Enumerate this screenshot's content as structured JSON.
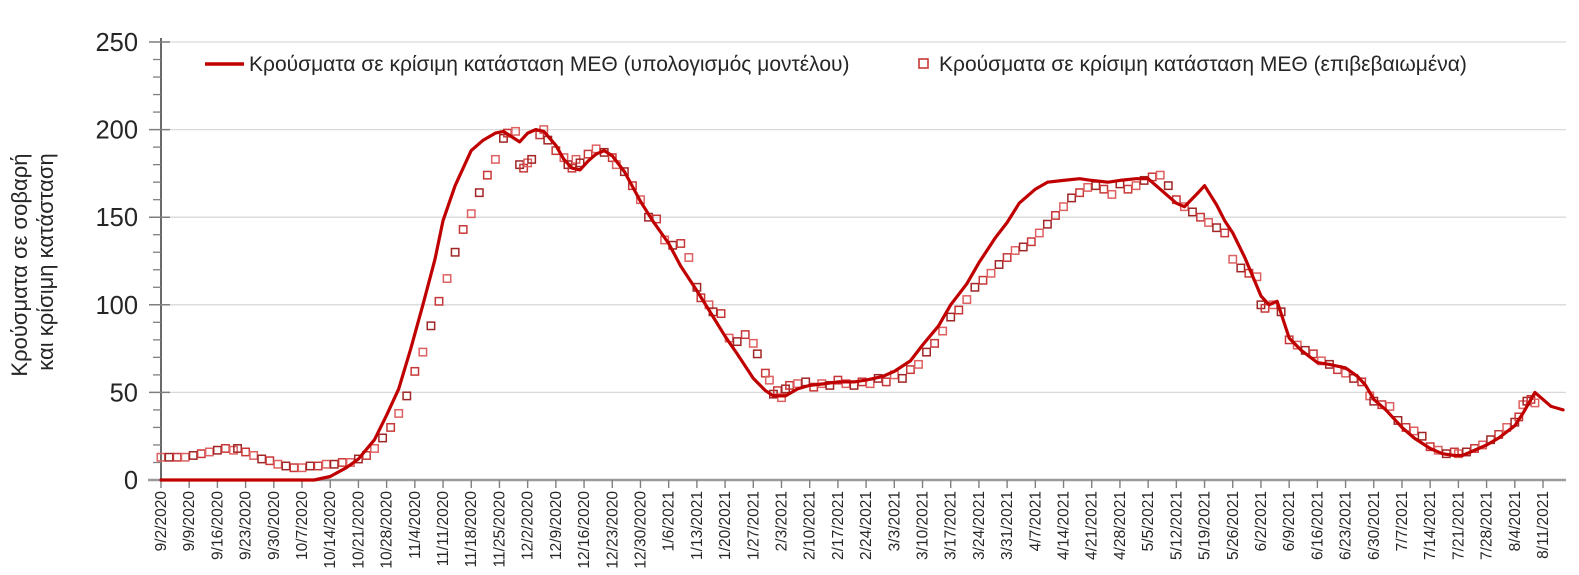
{
  "chart_data": {
    "type": "line",
    "title": "",
    "ylabel_line1": "Κρούσματα σε σοβαρή",
    "ylabel_line2": "και κρίσιμη κατάσταση",
    "ylim": [
      0,
      250
    ],
    "y_ticks": [
      0,
      50,
      100,
      150,
      200,
      250
    ],
    "y_minor_tick_step": 10,
    "grid": "horizontal-major",
    "legend_position": "top",
    "x_tick_interval_days": 7,
    "x_tick_labels": [
      "9/2/2020",
      "9/9/2020",
      "9/16/2020",
      "9/23/2020",
      "9/30/2020",
      "10/7/2020",
      "10/14/2020",
      "10/21/2020",
      "10/28/2020",
      "11/4/2020",
      "11/11/2020",
      "11/18/2020",
      "11/25/2020",
      "12/2/2020",
      "12/9/2020",
      "12/16/2020",
      "12/23/2020",
      "12/30/2020",
      "1/6/2021",
      "1/13/2021",
      "1/20/2021",
      "1/27/2021",
      "2/3/2021",
      "2/10/2021",
      "2/17/2021",
      "2/24/2021",
      "3/3/2021",
      "3/10/2021",
      "3/17/2021",
      "3/24/2021",
      "3/31/2021",
      "4/7/2021",
      "4/14/2021",
      "4/21/2021",
      "4/28/2021",
      "5/5/2021",
      "5/12/2021",
      "5/19/2021",
      "5/26/2021",
      "6/2/2021",
      "6/9/2021",
      "6/16/2021",
      "6/23/2021",
      "6/30/2021",
      "7/7/2021",
      "7/14/2021",
      "7/21/2021",
      "7/28/2021",
      "8/4/2021",
      "8/11/2021"
    ],
    "colors": {
      "model_line": "#c00000",
      "grid": "#d9d9d9",
      "axis_x": "#9b9b9b",
      "axis_y": "#595959",
      "tick": "#7f7f7f",
      "text": "#262626",
      "marker_colors": [
        "#df6060",
        "#a02525",
        "#c83737"
      ]
    },
    "series": [
      {
        "name": "Κρούσματα σε κρίσιμη κατάσταση ΜΕΘ (υπολογισμός μοντέλου)",
        "type": "line",
        "color": "#c00000",
        "points_day_value": [
          [
            0,
            0
          ],
          [
            20,
            0
          ],
          [
            38,
            0
          ],
          [
            42,
            2
          ],
          [
            46,
            7
          ],
          [
            49,
            12
          ],
          [
            53,
            23
          ],
          [
            56,
            37
          ],
          [
            59,
            52
          ],
          [
            62,
            75
          ],
          [
            65,
            100
          ],
          [
            68,
            126
          ],
          [
            70,
            148
          ],
          [
            73,
            168
          ],
          [
            77,
            188
          ],
          [
            80,
            194
          ],
          [
            83,
            198
          ],
          [
            85,
            199
          ],
          [
            87,
            196
          ],
          [
            89,
            193
          ],
          [
            91,
            198
          ],
          [
            93,
            200
          ],
          [
            95,
            199
          ],
          [
            98,
            191
          ],
          [
            100,
            183
          ],
          [
            102,
            178
          ],
          [
            104,
            177
          ],
          [
            106,
            182
          ],
          [
            108,
            186
          ],
          [
            110,
            188
          ],
          [
            112,
            185
          ],
          [
            115,
            176
          ],
          [
            119,
            159
          ],
          [
            122,
            148
          ],
          [
            126,
            135
          ],
          [
            129,
            122
          ],
          [
            133,
            108
          ],
          [
            136,
            97
          ],
          [
            140,
            82
          ],
          [
            143,
            72
          ],
          [
            147,
            58
          ],
          [
            150,
            51
          ],
          [
            152,
            48
          ],
          [
            155,
            48
          ],
          [
            158,
            52
          ],
          [
            161,
            54
          ],
          [
            165,
            55
          ],
          [
            168,
            56
          ],
          [
            172,
            56
          ],
          [
            175,
            57
          ],
          [
            179,
            59
          ],
          [
            182,
            62
          ],
          [
            186,
            68
          ],
          [
            189,
            77
          ],
          [
            193,
            88
          ],
          [
            196,
            100
          ],
          [
            200,
            112
          ],
          [
            203,
            124
          ],
          [
            207,
            138
          ],
          [
            210,
            147
          ],
          [
            213,
            158
          ],
          [
            217,
            166
          ],
          [
            220,
            170
          ],
          [
            224,
            171
          ],
          [
            228,
            172
          ],
          [
            231,
            171
          ],
          [
            235,
            170
          ],
          [
            238,
            171
          ],
          [
            242,
            172
          ],
          [
            245,
            172
          ],
          [
            248,
            166
          ],
          [
            252,
            158
          ],
          [
            254,
            156
          ],
          [
            257,
            163
          ],
          [
            259,
            168
          ],
          [
            262,
            157
          ],
          [
            264,
            148
          ],
          [
            266,
            141
          ],
          [
            269,
            127
          ],
          [
            271,
            116
          ],
          [
            273,
            105
          ],
          [
            275,
            100
          ],
          [
            277,
            102
          ],
          [
            280,
            81
          ],
          [
            283,
            74
          ],
          [
            287,
            67
          ],
          [
            290,
            66
          ],
          [
            294,
            64
          ],
          [
            297,
            59
          ],
          [
            299,
            54
          ],
          [
            301,
            46
          ],
          [
            304,
            40
          ],
          [
            308,
            30
          ],
          [
            311,
            24
          ],
          [
            315,
            18
          ],
          [
            318,
            15
          ],
          [
            321,
            14
          ],
          [
            323,
            14
          ],
          [
            325,
            16
          ],
          [
            329,
            20
          ],
          [
            332,
            24
          ],
          [
            336,
            31
          ],
          [
            338,
            38
          ],
          [
            340,
            46
          ],
          [
            341,
            50
          ],
          [
            343,
            46
          ],
          [
            345,
            42
          ],
          [
            348,
            40
          ]
        ]
      },
      {
        "name": "Κρούσματα σε κρίσιμη κατάσταση ΜΕΘ (επιβεβαιωμένα)",
        "type": "scatter-square",
        "color": "#c83737",
        "points_day_value": [
          [
            0,
            13
          ],
          [
            2,
            13
          ],
          [
            4,
            13
          ],
          [
            6,
            13
          ],
          [
            8,
            14
          ],
          [
            10,
            15
          ],
          [
            12,
            16
          ],
          [
            14,
            17
          ],
          [
            16,
            18
          ],
          [
            18,
            17
          ],
          [
            19,
            18
          ],
          [
            21,
            16
          ],
          [
            23,
            14
          ],
          [
            25,
            12
          ],
          [
            27,
            11
          ],
          [
            29,
            9
          ],
          [
            31,
            8
          ],
          [
            33,
            7
          ],
          [
            35,
            7
          ],
          [
            37,
            8
          ],
          [
            39,
            8
          ],
          [
            41,
            9
          ],
          [
            43,
            9
          ],
          [
            45,
            10
          ],
          [
            47,
            10
          ],
          [
            49,
            12
          ],
          [
            51,
            14
          ],
          [
            53,
            18
          ],
          [
            55,
            24
          ],
          [
            57,
            30
          ],
          [
            59,
            38
          ],
          [
            61,
            48
          ],
          [
            63,
            62
          ],
          [
            65,
            73
          ],
          [
            67,
            88
          ],
          [
            69,
            102
          ],
          [
            71,
            115
          ],
          [
            73,
            130
          ],
          [
            75,
            143
          ],
          [
            77,
            152
          ],
          [
            79,
            164
          ],
          [
            81,
            174
          ],
          [
            83,
            183
          ],
          [
            85,
            195
          ],
          [
            86,
            198
          ],
          [
            88,
            199
          ],
          [
            89,
            180
          ],
          [
            90,
            178
          ],
          [
            91,
            181
          ],
          [
            92,
            183
          ],
          [
            94,
            197
          ],
          [
            95,
            200
          ],
          [
            96,
            194
          ],
          [
            98,
            188
          ],
          [
            100,
            184
          ],
          [
            101,
            180
          ],
          [
            102,
            178
          ],
          [
            103,
            183
          ],
          [
            104,
            181
          ],
          [
            106,
            186
          ],
          [
            108,
            189
          ],
          [
            110,
            187
          ],
          [
            112,
            184
          ],
          [
            113,
            180
          ],
          [
            115,
            176
          ],
          [
            117,
            168
          ],
          [
            119,
            160
          ],
          [
            121,
            150
          ],
          [
            123,
            149
          ],
          [
            125,
            137
          ],
          [
            127,
            134
          ],
          [
            129,
            135
          ],
          [
            131,
            127
          ],
          [
            133,
            110
          ],
          [
            134,
            104
          ],
          [
            136,
            100
          ],
          [
            137,
            96
          ],
          [
            139,
            95
          ],
          [
            141,
            81
          ],
          [
            143,
            79
          ],
          [
            145,
            83
          ],
          [
            147,
            78
          ],
          [
            148,
            72
          ],
          [
            150,
            61
          ],
          [
            151,
            57
          ],
          [
            152,
            49
          ],
          [
            153,
            51
          ],
          [
            154,
            47
          ],
          [
            155,
            52
          ],
          [
            156,
            54
          ],
          [
            158,
            55
          ],
          [
            160,
            56
          ],
          [
            162,
            53
          ],
          [
            164,
            55
          ],
          [
            166,
            54
          ],
          [
            168,
            57
          ],
          [
            170,
            55
          ],
          [
            172,
            54
          ],
          [
            174,
            56
          ],
          [
            176,
            55
          ],
          [
            178,
            58
          ],
          [
            180,
            56
          ],
          [
            182,
            60
          ],
          [
            184,
            58
          ],
          [
            186,
            63
          ],
          [
            188,
            66
          ],
          [
            190,
            73
          ],
          [
            192,
            78
          ],
          [
            194,
            85
          ],
          [
            196,
            93
          ],
          [
            198,
            97
          ],
          [
            200,
            103
          ],
          [
            202,
            110
          ],
          [
            204,
            114
          ],
          [
            206,
            118
          ],
          [
            208,
            123
          ],
          [
            210,
            127
          ],
          [
            212,
            131
          ],
          [
            214,
            133
          ],
          [
            216,
            136
          ],
          [
            218,
            141
          ],
          [
            220,
            146
          ],
          [
            222,
            151
          ],
          [
            224,
            156
          ],
          [
            226,
            161
          ],
          [
            228,
            164
          ],
          [
            230,
            167
          ],
          [
            232,
            168
          ],
          [
            234,
            166
          ],
          [
            236,
            163
          ],
          [
            238,
            169
          ],
          [
            240,
            166
          ],
          [
            242,
            168
          ],
          [
            244,
            171
          ],
          [
            246,
            173
          ],
          [
            248,
            174
          ],
          [
            250,
            168
          ],
          [
            252,
            160
          ],
          [
            254,
            156
          ],
          [
            256,
            153
          ],
          [
            258,
            150
          ],
          [
            260,
            147
          ],
          [
            262,
            144
          ],
          [
            264,
            141
          ],
          [
            266,
            126
          ],
          [
            268,
            121
          ],
          [
            270,
            118
          ],
          [
            272,
            116
          ],
          [
            273,
            100
          ],
          [
            274,
            98
          ],
          [
            276,
            100
          ],
          [
            278,
            96
          ],
          [
            280,
            80
          ],
          [
            282,
            77
          ],
          [
            284,
            74
          ],
          [
            286,
            72
          ],
          [
            288,
            68
          ],
          [
            290,
            66
          ],
          [
            292,
            63
          ],
          [
            294,
            61
          ],
          [
            296,
            58
          ],
          [
            298,
            56
          ],
          [
            300,
            48
          ],
          [
            301,
            45
          ],
          [
            303,
            43
          ],
          [
            305,
            42
          ],
          [
            307,
            34
          ],
          [
            309,
            30
          ],
          [
            311,
            28
          ],
          [
            313,
            25
          ],
          [
            315,
            19
          ],
          [
            317,
            17
          ],
          [
            319,
            15
          ],
          [
            321,
            16
          ],
          [
            322,
            15
          ],
          [
            324,
            16
          ],
          [
            326,
            18
          ],
          [
            328,
            20
          ],
          [
            330,
            23
          ],
          [
            332,
            26
          ],
          [
            334,
            30
          ],
          [
            336,
            33
          ],
          [
            337,
            36
          ],
          [
            338,
            43
          ],
          [
            339,
            45
          ],
          [
            340,
            46
          ],
          [
            341,
            44
          ]
        ]
      }
    ],
    "legend": [
      {
        "label": "Κρούσματα σε κρίσιμη κατάσταση ΜΕΘ (υπολογισμός μοντέλου)",
        "marker": "line"
      },
      {
        "label": "Κρούσματα σε κρίσιμη κατάσταση ΜΕΘ (επιβεβαιωμένα)",
        "marker": "open-square"
      }
    ]
  }
}
